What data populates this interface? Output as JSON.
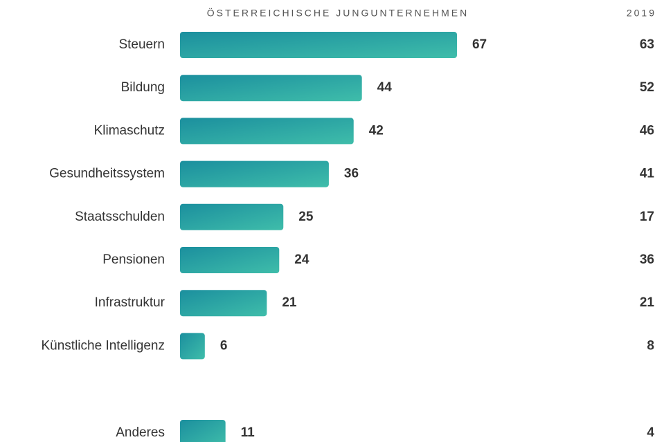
{
  "chart_data": {
    "type": "bar",
    "orientation": "horizontal",
    "categories": [
      "Steuern",
      "Bildung",
      "Klimaschutz",
      "Gesundheitssystem",
      "Staatsschulden",
      "Pensionen",
      "Infrastruktur",
      "Künstliche Intelligenz",
      "Anderes"
    ],
    "series": [
      {
        "name": "ÖSTERREICHISCHE JUNGUNTERNEHMEN",
        "colors": [
          "#1b8f9e",
          "#3fbdaa"
        ],
        "values": [
          67,
          44,
          42,
          36,
          25,
          24,
          21,
          6,
          11
        ]
      },
      {
        "name": "2019",
        "values": [
          63,
          52,
          46,
          41,
          17,
          36,
          21,
          8,
          4
        ]
      }
    ]
  }
}
